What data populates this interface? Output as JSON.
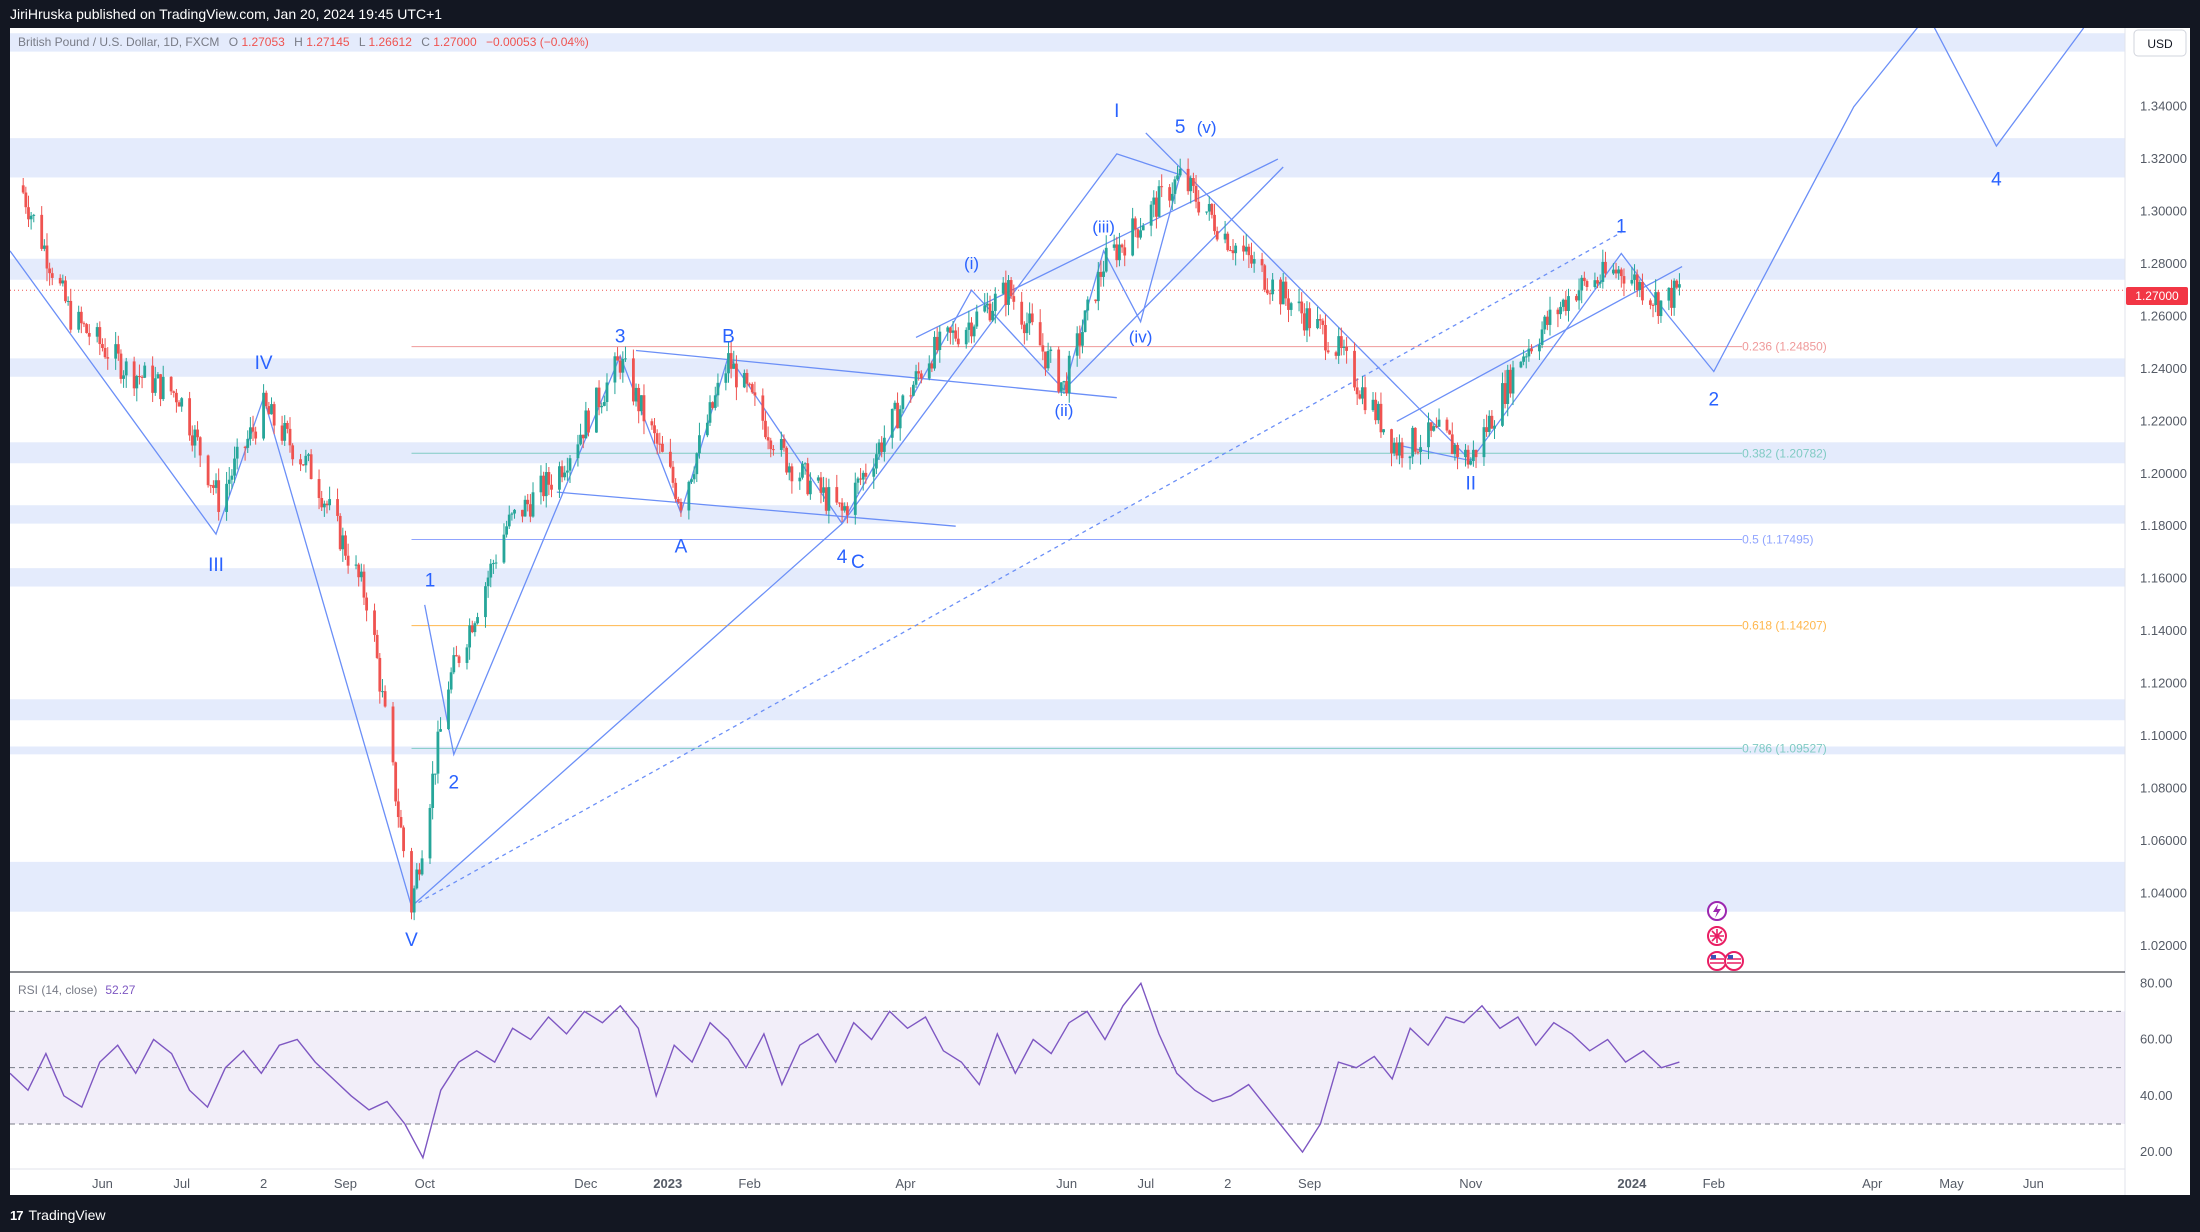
{
  "header": {
    "published_text": "JiriHruska published on TradingView.com, Jan 20, 2024 19:45 UTC+1"
  },
  "footer": {
    "brand": "TradingView"
  },
  "legend": {
    "symbol": "British Pound / U.S. Dollar, 1D, FXCM",
    "o_label": "O",
    "o_value": "1.27053",
    "h_label": "H",
    "h_value": "1.27145",
    "l_label": "L",
    "l_value": "1.26612",
    "c_label": "C",
    "c_value": "1.27000",
    "change": "−0.00053 (−0.04%)"
  },
  "currency": "USD",
  "last_price": "1.27000",
  "colors": {
    "up": "#26a69a",
    "down": "#ef5350",
    "wave": "#2962ff",
    "zone": "#dde6fb",
    "rsi": "#7e57c2",
    "background": "#131722"
  },
  "icons": [
    "lightning-event-icon",
    "gb-flag-icon",
    "us-flag-icon"
  ],
  "rsi": {
    "label": "RSI (14, close)",
    "value": "52.27"
  },
  "chart_data": [
    {
      "type": "candlestick",
      "title": "British Pound / U.S. Dollar, 1D, FXCM",
      "ylim": [
        1.01,
        1.37
      ],
      "y_ticks": [
        "1.34000",
        "1.32000",
        "1.30000",
        "1.28000",
        "1.26000",
        "1.24000",
        "1.22000",
        "1.20000",
        "1.18000",
        "1.16000",
        "1.14000",
        "1.12000",
        "1.10000",
        "1.08000",
        "1.06000",
        "1.04000",
        "1.02000"
      ],
      "x_ticks": [
        "Jun",
        "Jul",
        "2",
        "Sep",
        "Oct",
        "Dec",
        "2023",
        "Feb",
        "Apr",
        "Jun",
        "Jul",
        "2",
        "Sep",
        "Nov",
        "2024",
        "Feb",
        "Apr",
        "May",
        "Jun"
      ],
      "x": [
        "2022-05-01",
        "2022-05-20",
        "2022-06-10",
        "2022-06-30",
        "2022-07-15",
        "2022-08-01",
        "2022-08-20",
        "2022-09-10",
        "2022-09-26",
        "2022-10-10",
        "2022-11-01",
        "2022-11-20",
        "2022-12-14",
        "2023-01-06",
        "2023-01-24",
        "2023-02-15",
        "2023-03-08",
        "2023-04-10",
        "2023-05-10",
        "2023-05-31",
        "2023-06-15",
        "2023-07-14",
        "2023-08-01",
        "2023-08-20",
        "2023-09-10",
        "2023-10-04",
        "2023-10-20",
        "2023-11-01",
        "2023-11-20",
        "2023-12-10",
        "2023-12-28",
        "2024-01-12",
        "2024-01-19"
      ],
      "close": [
        1.31,
        1.26,
        1.24,
        1.23,
        1.19,
        1.225,
        1.2,
        1.15,
        1.035,
        1.12,
        1.18,
        1.2,
        1.243,
        1.19,
        1.243,
        1.205,
        1.185,
        1.245,
        1.27,
        1.233,
        1.28,
        1.313,
        1.29,
        1.27,
        1.25,
        1.21,
        1.215,
        1.205,
        1.245,
        1.27,
        1.278,
        1.265,
        1.27
      ],
      "zones": [
        [
          1.313,
          1.328
        ],
        [
          1.274,
          1.282
        ],
        [
          1.237,
          1.244
        ],
        [
          1.204,
          1.212
        ],
        [
          1.181,
          1.188
        ],
        [
          1.157,
          1.164
        ],
        [
          1.106,
          1.114
        ],
        [
          1.093,
          1.096
        ],
        [
          1.033,
          1.052
        ],
        [
          1.361,
          1.368
        ]
      ],
      "fibonacci": [
        {
          "level": "0.236",
          "price": "1.24850",
          "color": "#ef9a9a"
        },
        {
          "level": "0.382",
          "price": "1.20782",
          "color": "#80cbc4"
        },
        {
          "level": "0.5",
          "price": "1.17495",
          "color": "#90a4ff"
        },
        {
          "level": "0.618",
          "price": "1.14207",
          "color": "#ffb74d"
        },
        {
          "level": "0.786",
          "price": "1.09527",
          "color": "#80cbc4"
        }
      ],
      "wave_labels": [
        "I",
        "II",
        "III",
        "IV",
        "V",
        "1",
        "2",
        "3",
        "4",
        "5",
        "A",
        "B",
        "C",
        "(i)",
        "(ii)",
        "(iii)",
        "(iv)",
        "(v)",
        "1",
        "2",
        "4"
      ]
    },
    {
      "type": "line",
      "title": "RSI (14, close)",
      "ylim": [
        14,
        84
      ],
      "y_ticks": [
        "80.00",
        "60.00",
        "40.00",
        "20.00"
      ],
      "bands": [
        30,
        50,
        70
      ],
      "values": [
        48,
        42,
        55,
        40,
        36,
        52,
        58,
        48,
        60,
        55,
        42,
        36,
        50,
        56,
        48,
        58,
        60,
        52,
        46,
        40,
        35,
        38,
        30,
        18,
        42,
        52,
        56,
        52,
        64,
        60,
        68,
        62,
        70,
        66,
        72,
        64,
        40,
        58,
        52,
        66,
        60,
        50,
        62,
        44,
        58,
        62,
        52,
        66,
        60,
        70,
        64,
        68,
        56,
        52,
        44,
        62,
        48,
        60,
        55,
        66,
        70,
        60,
        72,
        80,
        62,
        48,
        42,
        38,
        40,
        44,
        36,
        28,
        20,
        30,
        52,
        50,
        54,
        46,
        64,
        58,
        68,
        66,
        72,
        64,
        68,
        58,
        66,
        62,
        56,
        60,
        52,
        56,
        50,
        52
      ]
    }
  ]
}
